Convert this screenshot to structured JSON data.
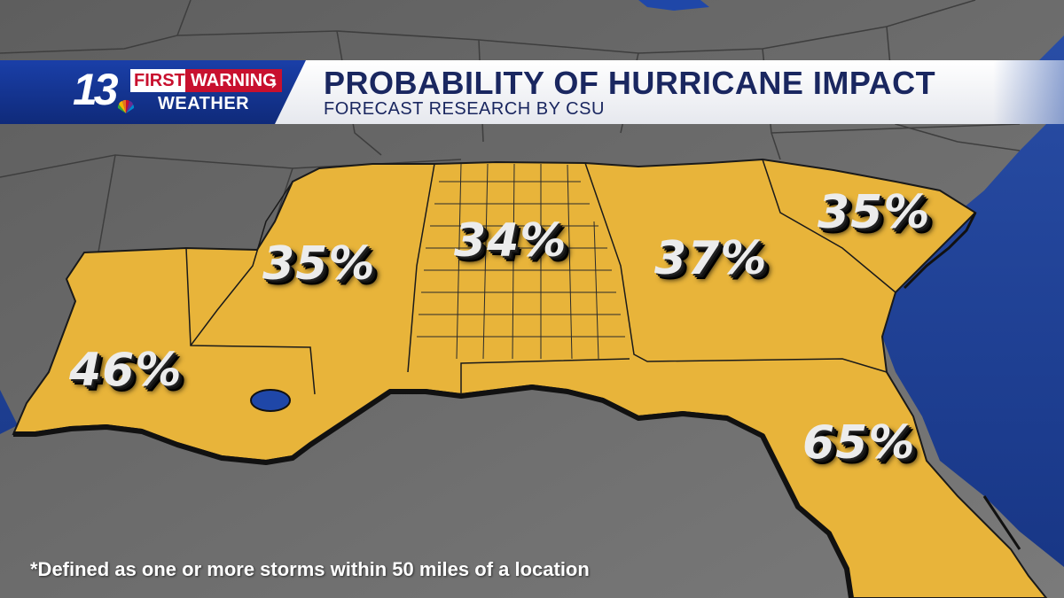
{
  "branding": {
    "station_number": "13",
    "first": "FIRST",
    "warning": "WARNING",
    "weather": "WEATHER"
  },
  "title": {
    "main": "PROBABILITY OF HURRICANE IMPACT",
    "sub": "FORECAST RESEARCH BY CSU"
  },
  "probabilities": {
    "louisiana": "46%",
    "mississippi": "35%",
    "alabama": "34%",
    "georgia": "37%",
    "south_carolina": "35%",
    "florida": "65%"
  },
  "footnote": "*Defined as one or more storms within 50 miles of a location",
  "colors": {
    "highlight_region": "#e8b43a",
    "ocean": "#1c3d8f",
    "land": "#6f6f6f",
    "brand_red": "#c8102e",
    "title_text": "#1a2760"
  },
  "icons": {
    "network_logo": "peacock-icon",
    "chevron": "chevron-right-icon"
  }
}
